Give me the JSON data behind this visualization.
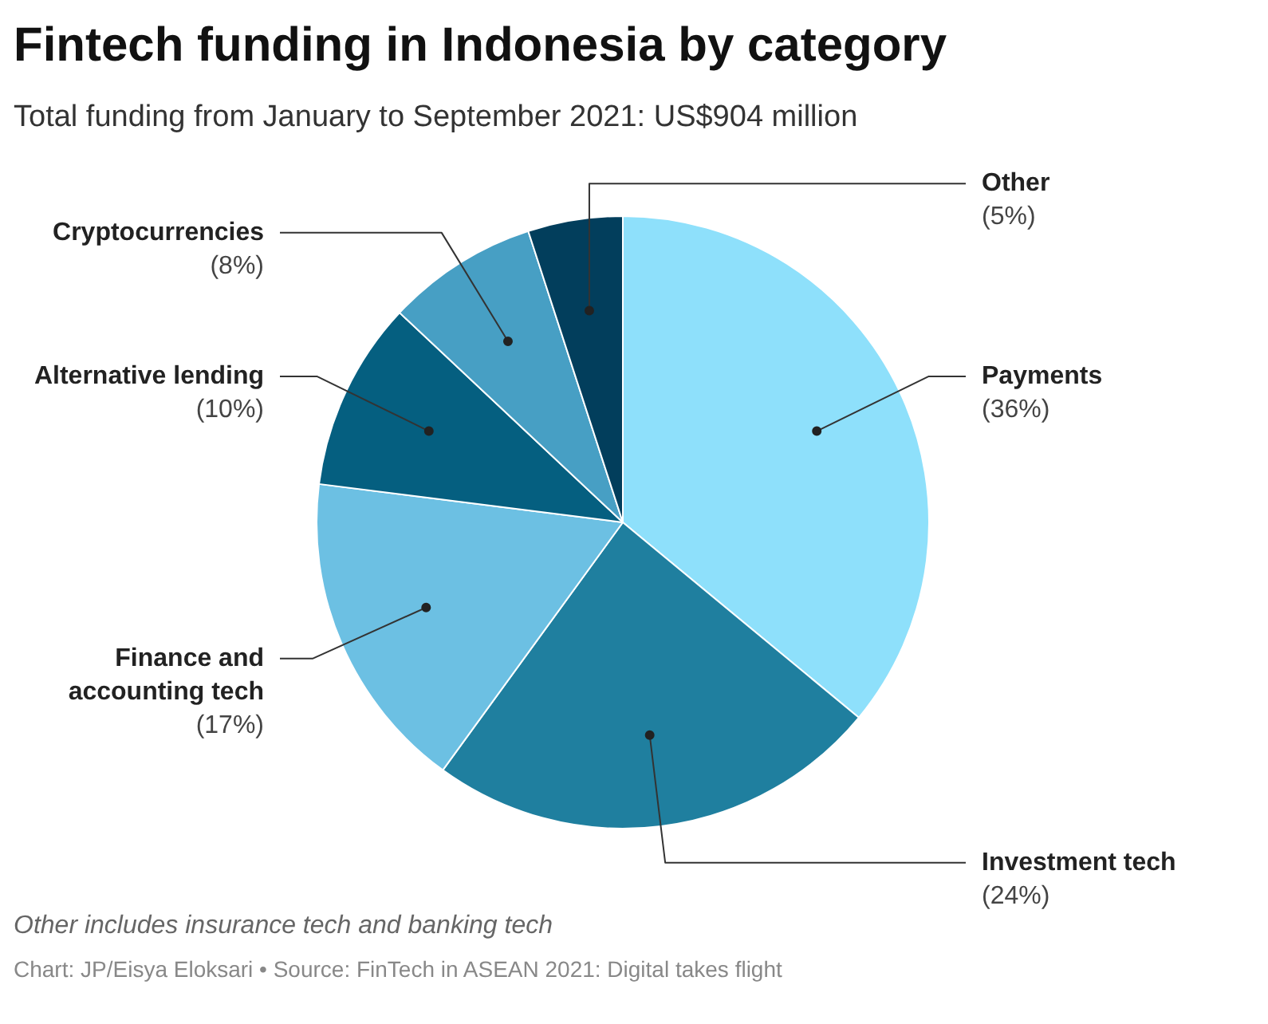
{
  "chart_data": {
    "type": "pie",
    "title": "Fintech funding in Indonesia by category",
    "subtitle": "Total funding from January to September 2021: US$904 million",
    "categories": [
      "Payments",
      "Investment tech",
      "Finance and accounting tech",
      "Alternative lending",
      "Cryptocurrencies",
      "Other"
    ],
    "values": [
      36,
      24,
      17,
      10,
      8,
      5
    ],
    "value_labels": [
      "(36%)",
      "(24%)",
      "(17%)",
      "(10%)",
      "(8%)",
      "(5%)"
    ],
    "colors": [
      "#8ee0fb",
      "#1f7f9f",
      "#6cc0e3",
      "#055f80",
      "#479fc4",
      "#023e5c"
    ],
    "annotations": [
      "Other includes insurance tech and banking tech",
      "Chart: JP/Eisya Eloksari • Source: FinTech in ASEAN 2021: Digital takes flight"
    ]
  }
}
